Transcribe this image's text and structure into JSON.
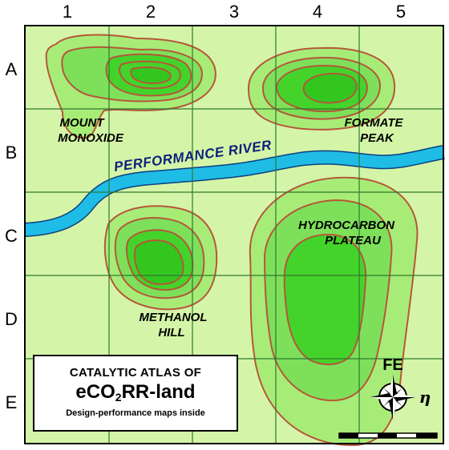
{
  "columns": [
    "1",
    "2",
    "3",
    "4",
    "5"
  ],
  "rows": [
    "A",
    "B",
    "C",
    "D",
    "E"
  ],
  "colors": {
    "land": "#d4f5a8",
    "contour_fill_1": "#a8ec78",
    "contour_fill_2": "#7ee05a",
    "contour_fill_3": "#44d32a",
    "contour_line": "#b5573a",
    "river": "#1fbde6",
    "grid": "#2d7a2d"
  },
  "features": {
    "mount_monoxide": [
      "MOUNT",
      "MONOXIDE"
    ],
    "formate_peak": [
      "FORMATE",
      "PEAK"
    ],
    "hydrocarbon_plateau": [
      "HYDROCARBON",
      "PLATEAU"
    ],
    "methanol_hill": [
      "METHANOL",
      "HILL"
    ]
  },
  "river": {
    "label": "PERFORMANCE RIVER"
  },
  "legend": {
    "line1": "CATALYTIC ATLAS OF",
    "title_prefix": "eCO",
    "title_sub": "2",
    "title_suffix": "RR-land",
    "line3": "Design-performance maps inside"
  },
  "compass": {
    "north_label": "FE",
    "east_label": "η",
    "icon": "compass-rose-icon"
  },
  "scale_bar": {
    "icon": "scale-bar-icon"
  }
}
